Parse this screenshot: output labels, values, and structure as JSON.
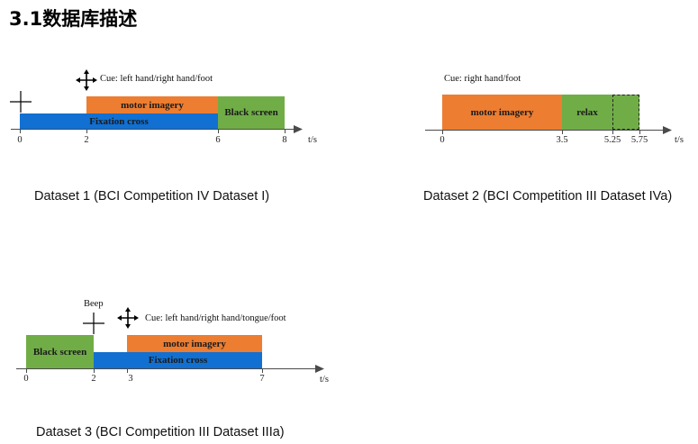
{
  "heading": "3.1数据库描述",
  "diagrams": {
    "d1": {
      "caption": "Dataset 1 (BCI Competition IV Dataset I)",
      "cue": "Cue: left hand/right hand/foot",
      "motor": "motor imagery",
      "fixation": "Fixation cross",
      "black": "Black screen",
      "ticks": [
        "0",
        "2",
        "6",
        "8"
      ],
      "unit": "t/s"
    },
    "d2": {
      "caption": "Dataset 2 (BCI Competition III Dataset IVa)",
      "cue": "Cue: right hand/foot",
      "motor": "motor imagery",
      "relax": "relax",
      "ticks": [
        "0",
        "3.5",
        "5.25",
        "5.75"
      ],
      "unit": "t/s"
    },
    "d3": {
      "caption": "Dataset 3 (BCI Competition III Dataset IIIa)",
      "beep": "Beep",
      "cue": "Cue: left hand/right hand/tongue/foot",
      "motor": "motor imagery",
      "fixation": "Fixation cross",
      "black": "Black screen",
      "ticks": [
        "0",
        "2",
        "3",
        "7"
      ],
      "unit": "t/s"
    }
  },
  "colors": {
    "motor": "#ED7D31",
    "fixation": "#1170D1",
    "screen": "#70AD47"
  }
}
